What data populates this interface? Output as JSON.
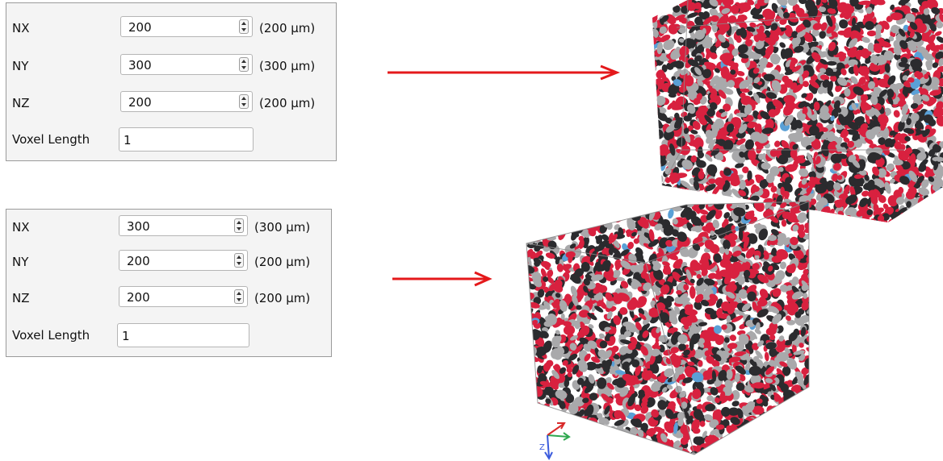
{
  "panel_top": {
    "nx_label": "NX",
    "nx_value": "200",
    "nx_unit": "(200 µm)",
    "ny_label": "NY",
    "ny_value": "300",
    "ny_unit": "(300 µm)",
    "nz_label": "NZ",
    "nz_value": "200",
    "nz_unit": "(200 µm)",
    "voxel_label": "Voxel Length",
    "voxel_value": "1"
  },
  "panel_bottom": {
    "nx_label": "NX",
    "nx_value": "300",
    "nx_unit": "(300 µm)",
    "ny_label": "NY",
    "ny_value": "200",
    "ny_unit": "(200 µm)",
    "nz_label": "NZ",
    "nz_value": "200",
    "nz_unit": "(200 µm)",
    "voxel_label": "Voxel Length",
    "voxel_value": "1"
  },
  "orientation_axes": {
    "z_label": "Z"
  },
  "colors": {
    "arrow": "#e4191b",
    "particle_red": "#d8213f",
    "particle_gray": "#a9a9ab",
    "particle_dark": "#2b2b2e",
    "particle_blue": "#5aa0d6"
  }
}
